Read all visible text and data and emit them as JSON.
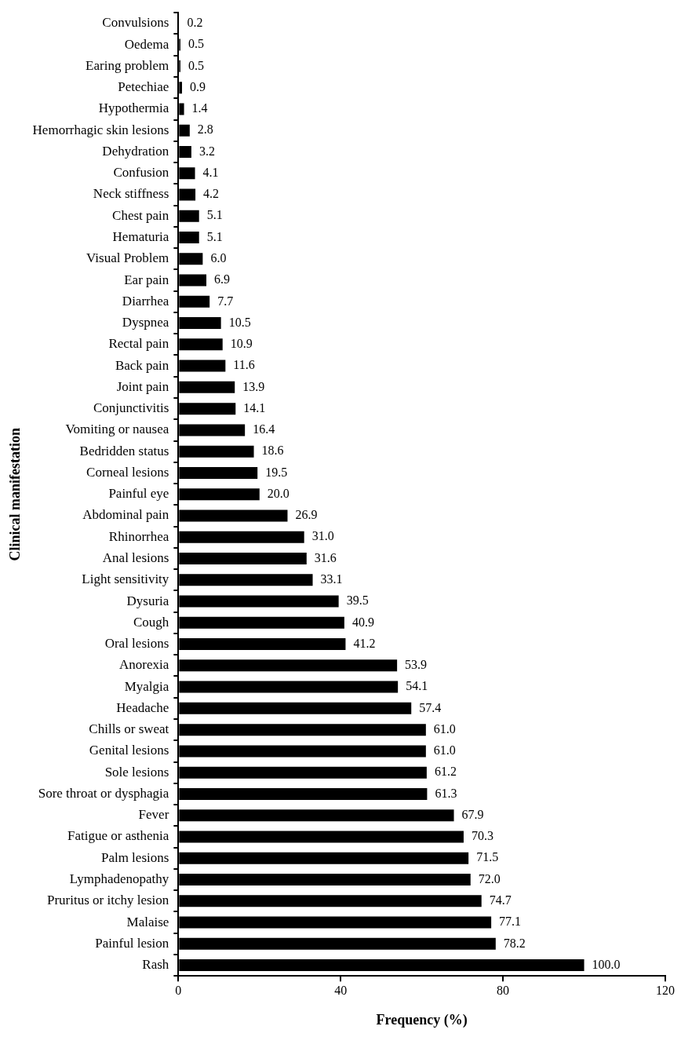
{
  "chart_data": {
    "type": "bar",
    "orientation": "horizontal",
    "xlabel": "Frequency (%)",
    "ylabel": "Clinical manifestation",
    "categories": [
      "Convulsions",
      "Oedema",
      "Earing problem",
      "Petechiae",
      "Hypothermia",
      "Hemorrhagic skin lesions",
      "Dehydration",
      "Confusion",
      "Neck stiffness",
      "Chest pain",
      "Hematuria",
      "Visual Problem",
      "Ear pain",
      "Diarrhea",
      "Dyspnea",
      "Rectal pain",
      "Back pain",
      "Joint pain",
      "Conjunctivitis",
      "Vomiting or nausea",
      "Bedridden status",
      "Corneal lesions",
      "Painful eye",
      "Abdominal pain",
      "Rhinorrhea",
      "Anal lesions",
      "Light sensitivity",
      "Dysuria",
      "Cough",
      "Oral lesions",
      "Anorexia",
      "Myalgia",
      "Headache",
      "Chills or sweat",
      "Genital lesions",
      "Sole lesions",
      "Sore throat or dysphagia",
      "Fever",
      "Fatigue or asthenia",
      "Palm lesions",
      "Lymphadenopathy",
      "Pruritus or itchy lesion",
      "Malaise",
      "Painful lesion",
      "Rash"
    ],
    "values": [
      0.2,
      0.5,
      0.5,
      0.9,
      1.4,
      2.8,
      3.2,
      4.1,
      4.2,
      5.1,
      5.1,
      6.0,
      6.9,
      7.7,
      10.5,
      10.9,
      11.6,
      13.9,
      14.1,
      16.4,
      18.6,
      19.5,
      20.0,
      26.9,
      31.0,
      31.6,
      33.1,
      39.5,
      40.9,
      41.2,
      53.9,
      54.1,
      57.4,
      61.0,
      61.0,
      61.2,
      61.3,
      67.9,
      70.3,
      71.5,
      72.0,
      74.7,
      77.1,
      78.2,
      100.0
    ],
    "value_labels": [
      "0.2",
      "0.5",
      "0.5",
      "0.9",
      "1.4",
      "2.8",
      "3.2",
      "4.1",
      "4.2",
      "5.1",
      "5.1",
      "6.0",
      "6.9",
      "7.7",
      "10.5",
      "10.9",
      "11.6",
      "13.9",
      "14.1",
      "16.4",
      "18.6",
      "19.5",
      "20.0",
      "26.9",
      "31.0",
      "31.6",
      "33.1",
      "39.5",
      "40.9",
      "41.2",
      "53.9",
      "54.1",
      "57.4",
      "61.0",
      "61.0",
      "61.2",
      "61.3",
      "67.9",
      "70.3",
      "71.5",
      "72.0",
      "74.7",
      "77.1",
      "78.2",
      "100.0"
    ],
    "color": "#000000",
    "xlim": [
      0,
      120
    ],
    "xticks": [
      0,
      40,
      80,
      120
    ],
    "grid": false,
    "legend": false
  }
}
